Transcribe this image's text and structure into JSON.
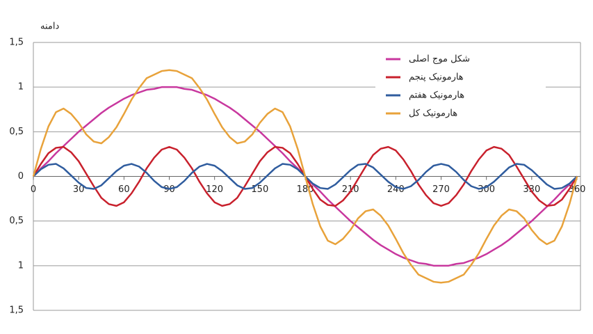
{
  "chart_data": {
    "type": "line",
    "y_label": "دامنه",
    "x": [
      0,
      5,
      10,
      15,
      20,
      25,
      30,
      35,
      40,
      45,
      50,
      55,
      60,
      65,
      70,
      75,
      80,
      85,
      90,
      95,
      100,
      105,
      110,
      115,
      120,
      125,
      130,
      135,
      140,
      145,
      150,
      155,
      160,
      165,
      170,
      175,
      180,
      185,
      190,
      195,
      200,
      205,
      210,
      215,
      220,
      225,
      230,
      235,
      240,
      245,
      250,
      255,
      260,
      265,
      270,
      275,
      280,
      285,
      290,
      295,
      300,
      305,
      310,
      315,
      320,
      325,
      330,
      335,
      340,
      345,
      350,
      355,
      360
    ],
    "xlim": [
      0,
      360
    ],
    "xticks": [
      0,
      30,
      60,
      90,
      120,
      150,
      180,
      210,
      240,
      270,
      300,
      330,
      360
    ],
    "ylim": [
      -1.5,
      1.5
    ],
    "yticks": [
      {
        "value": 1.5,
        "label": "1,5"
      },
      1,
      {
        "value": 0.5,
        "label": "0,5"
      },
      0,
      {
        "value": -0.5,
        "label": "0,5"
      },
      {
        "value": -1,
        "label": "1"
      },
      {
        "value": -1.5,
        "label": "1,5"
      }
    ],
    "grid": true,
    "legend": "upper right",
    "series": [
      {
        "name": "شکل موج اصلی",
        "color": "#c8379e",
        "values": [
          0,
          0.09,
          0.17,
          0.26,
          0.34,
          0.42,
          0.5,
          0.57,
          0.64,
          0.71,
          0.77,
          0.82,
          0.87,
          0.91,
          0.94,
          0.97,
          0.98,
          1.0,
          1,
          1.0,
          0.98,
          0.97,
          0.94,
          0.91,
          0.87,
          0.82,
          0.77,
          0.71,
          0.64,
          0.57,
          0.5,
          0.42,
          0.34,
          0.26,
          0.17,
          0.09,
          0,
          -0.09,
          -0.17,
          -0.26,
          -0.34,
          -0.42,
          -0.5,
          -0.57,
          -0.64,
          -0.71,
          -0.77,
          -0.82,
          -0.87,
          -0.91,
          -0.94,
          -0.97,
          -0.98,
          -1.0,
          -1,
          -1.0,
          -0.98,
          -0.97,
          -0.94,
          -0.91,
          -0.87,
          -0.82,
          -0.77,
          -0.71,
          -0.64,
          -0.57,
          -0.5,
          -0.42,
          -0.34,
          -0.26,
          -0.17,
          -0.09,
          0
        ]
      },
      {
        "name": "هارمونیک پنجم",
        "color": "#c8202c",
        "values": [
          0,
          0.14,
          0.26,
          0.32,
          0.33,
          0.27,
          0.17,
          0.03,
          -0.11,
          -0.24,
          -0.31,
          -0.33,
          -0.29,
          -0.19,
          -0.06,
          0.09,
          0.21,
          0.3,
          0.33,
          0.3,
          0.21,
          0.09,
          -0.06,
          -0.19,
          -0.29,
          -0.33,
          -0.31,
          -0.24,
          -0.11,
          0.03,
          0.17,
          0.27,
          0.33,
          0.32,
          0.26,
          0.14,
          0,
          -0.14,
          -0.26,
          -0.32,
          -0.33,
          -0.27,
          -0.17,
          -0.03,
          0.11,
          0.24,
          0.31,
          0.33,
          0.29,
          0.19,
          0.06,
          -0.09,
          -0.21,
          -0.3,
          -0.33,
          -0.3,
          -0.21,
          -0.09,
          0.06,
          0.19,
          0.29,
          0.33,
          0.31,
          0.24,
          0.11,
          -0.03,
          -0.17,
          -0.27,
          -0.33,
          -0.32,
          -0.26,
          -0.14,
          0
        ]
      },
      {
        "name": "هارمونیک هفتم",
        "color": "#2f5c9e",
        "values": [
          0,
          0.08,
          0.13,
          0.14,
          0.09,
          0.01,
          -0.07,
          -0.13,
          -0.14,
          -0.1,
          -0.02,
          0.06,
          0.12,
          0.14,
          0.11,
          0.04,
          -0.05,
          -0.12,
          -0.14,
          -0.12,
          -0.05,
          0.04,
          0.11,
          0.14,
          0.12,
          0.06,
          -0.02,
          -0.1,
          -0.14,
          -0.13,
          -0.07,
          0.01,
          0.09,
          0.14,
          0.13,
          0.08,
          0,
          -0.08,
          -0.13,
          -0.14,
          -0.09,
          -0.01,
          0.07,
          0.13,
          0.14,
          0.1,
          0.02,
          -0.06,
          -0.12,
          -0.14,
          -0.11,
          -0.04,
          0.05,
          0.12,
          0.14,
          0.12,
          0.05,
          -0.04,
          -0.11,
          -0.14,
          -0.12,
          -0.06,
          0.02,
          0.1,
          0.14,
          0.13,
          0.07,
          -0.01,
          -0.09,
          -0.14,
          -0.13,
          -0.08,
          0
        ]
      },
      {
        "name": "هارمونیک کل",
        "color": "#e8a23a",
        "values": [
          0,
          0.31,
          0.56,
          0.72,
          0.76,
          0.7,
          0.6,
          0.47,
          0.39,
          0.37,
          0.44,
          0.55,
          0.7,
          0.86,
          0.99,
          1.1,
          1.14,
          1.18,
          1.19,
          1.18,
          1.14,
          1.1,
          0.99,
          0.86,
          0.7,
          0.55,
          0.44,
          0.37,
          0.39,
          0.47,
          0.6,
          0.7,
          0.76,
          0.72,
          0.56,
          0.31,
          0,
          -0.31,
          -0.56,
          -0.72,
          -0.76,
          -0.7,
          -0.6,
          -0.47,
          -0.39,
          -0.37,
          -0.44,
          -0.55,
          -0.7,
          -0.86,
          -0.99,
          -1.1,
          -1.14,
          -1.18,
          -1.19,
          -1.18,
          -1.14,
          -1.1,
          -0.99,
          -0.86,
          -0.7,
          -0.55,
          -0.44,
          -0.37,
          -0.39,
          -0.47,
          -0.6,
          -0.7,
          -0.76,
          -0.72,
          -0.56,
          -0.31,
          0
        ]
      }
    ]
  }
}
